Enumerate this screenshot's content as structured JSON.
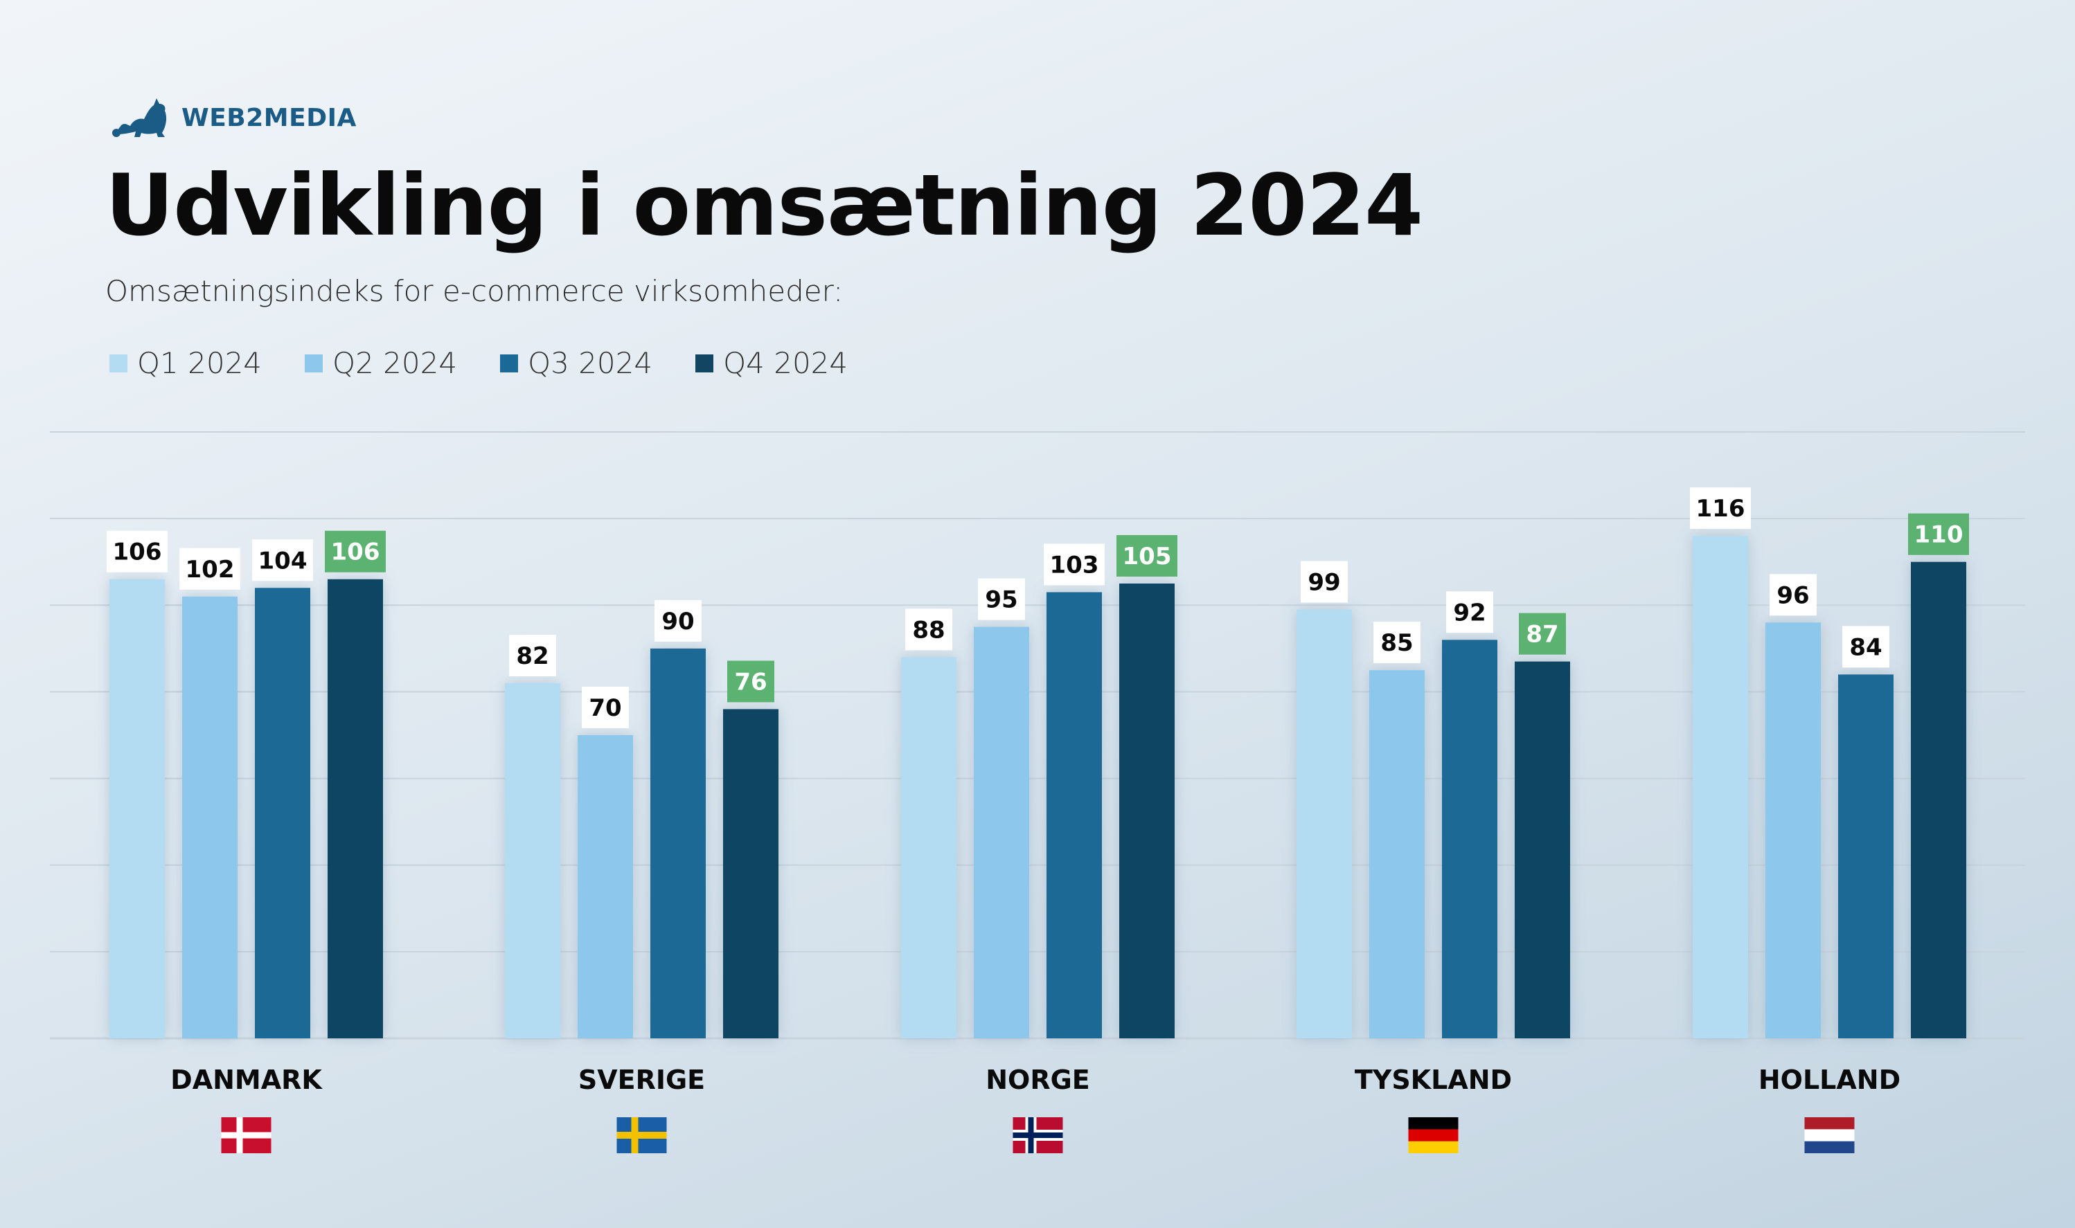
{
  "brand": {
    "name": "WEB2MEDIA",
    "logo_icon": "cat-icon"
  },
  "header": {
    "title": "Udvikling i omsætning 2024",
    "subtitle": "Omsætningsindeks for e-commerce virksomheder:"
  },
  "colors": {
    "q1": "#b3dbf1",
    "q2": "#8dc7ec",
    "q3": "#1a6996",
    "q4": "#114562",
    "highlight": "#5cb371",
    "label_bg": "#ffffff",
    "grid": "#c8d3dc"
  },
  "chart_data": {
    "type": "bar",
    "title": "Udvikling i omsætning 2024",
    "subtitle": "Omsætningsindeks for e-commerce virksomheder:",
    "categories": [
      "DANMARK",
      "SVERIGE",
      "NORGE",
      "TYSKLAND",
      "HOLLAND"
    ],
    "flags": [
      "flag-denmark-icon",
      "flag-sweden-icon",
      "flag-norway-icon",
      "flag-germany-icon",
      "flag-netherlands-icon"
    ],
    "series": [
      {
        "name": "Q1 2024",
        "values": [
          106,
          82,
          88,
          99,
          116
        ]
      },
      {
        "name": "Q2 2024",
        "values": [
          102,
          70,
          95,
          85,
          96
        ]
      },
      {
        "name": "Q3 2024",
        "values": [
          104,
          90,
          103,
          92,
          84
        ]
      },
      {
        "name": "Q4 2024",
        "values": [
          106,
          76,
          105,
          87,
          110
        ]
      }
    ],
    "highlight_series": "Q4 2024",
    "ylim": [
      0,
      140
    ],
    "grid": true,
    "legend": "top-left"
  }
}
